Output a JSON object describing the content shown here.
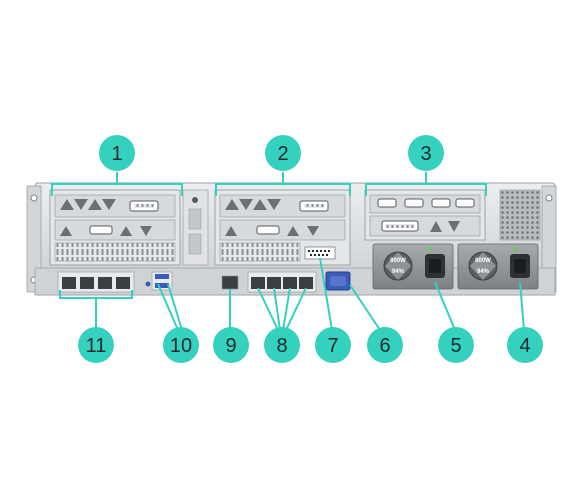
{
  "callouts": [
    {
      "id": "1",
      "label": "1"
    },
    {
      "id": "2",
      "label": "2"
    },
    {
      "id": "3",
      "label": "3"
    },
    {
      "id": "4",
      "label": "4"
    },
    {
      "id": "5",
      "label": "5"
    },
    {
      "id": "6",
      "label": "6"
    },
    {
      "id": "7",
      "label": "7"
    },
    {
      "id": "8",
      "label": "8"
    },
    {
      "id": "9",
      "label": "9"
    },
    {
      "id": "10",
      "label": "10"
    },
    {
      "id": "11",
      "label": "11"
    }
  ],
  "psu": [
    {
      "watts": "800W",
      "efficiency": "94%"
    },
    {
      "watts": "800W",
      "efficiency": "94%"
    }
  ],
  "colors": {
    "callout_fill": "#34d1bf",
    "callout_text": "#1f2a2e",
    "leader_line": "#34d1bf",
    "chassis": "#d9dcde",
    "chassis_dark": "#9aa0a4",
    "port_blue": "#3a5cb8",
    "psu_body": "#8f9397"
  }
}
